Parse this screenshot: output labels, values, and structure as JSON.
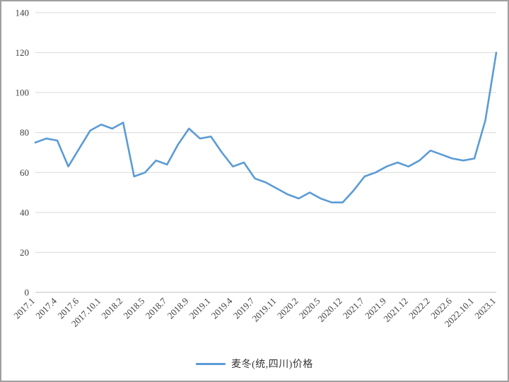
{
  "chart_data": {
    "type": "line",
    "title": "",
    "legend": "麦冬(统,四川)价格",
    "legend_position": "bottom",
    "grid": true,
    "ylim": [
      0,
      140
    ],
    "y_ticks": [
      0,
      20,
      40,
      60,
      80,
      100,
      120,
      140
    ],
    "x_tick_every": 2,
    "x_tick_labels": [
      "2017.1",
      "2017.4",
      "2017.6",
      "2017.10.1",
      "2018.2",
      "2018.5",
      "2018.7",
      "2018.9",
      "2019.1",
      "2019.4",
      "2019.7",
      "2019.11",
      "2020.2",
      "2020.5",
      "2020.12",
      "2021.7",
      "2021.9",
      "2021.12",
      "2022.2",
      "2022.6",
      "2022.10.1",
      "2023.1"
    ],
    "series": [
      {
        "name": "麦冬(统,四川)价格",
        "values": [
          75,
          77,
          76,
          63,
          72,
          81,
          84,
          82,
          85,
          58,
          60,
          66,
          64,
          74,
          82,
          77,
          78,
          70,
          63,
          65,
          57,
          55,
          52,
          49,
          47,
          50,
          47,
          45,
          45,
          51,
          58,
          60,
          63,
          65,
          63,
          66,
          71,
          69,
          67,
          66,
          67,
          86,
          120
        ]
      }
    ],
    "line_color": "#5B9BD5",
    "grid_color": "#D9D9D9",
    "axis_line_color": "#BFBFBF",
    "axis_text_color": "#3F3F3F"
  }
}
